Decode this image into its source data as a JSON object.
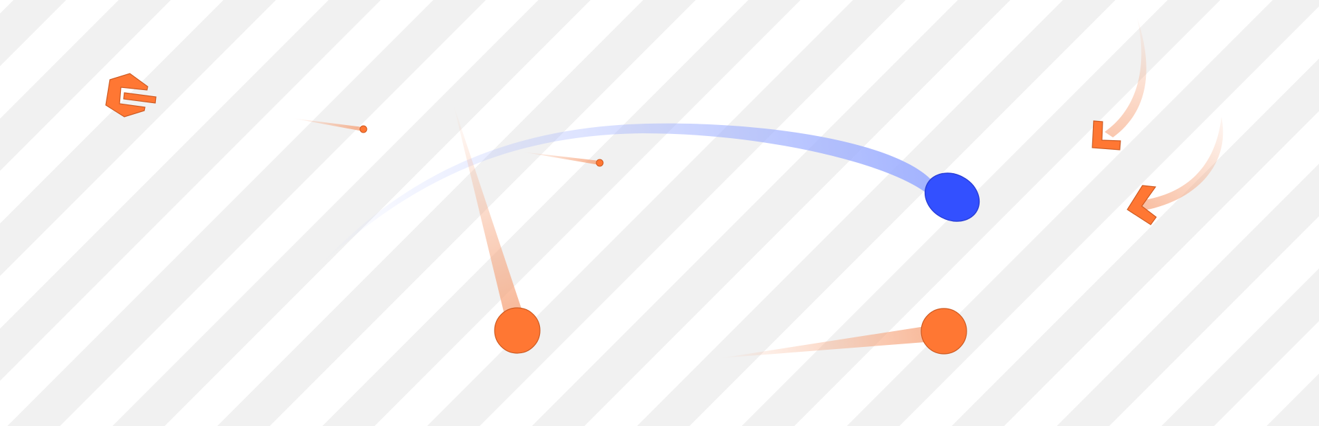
{
  "scene": {
    "background": {
      "stripe_light": "#ffffff",
      "stripe_dark": "#f1f1f1"
    },
    "colors": {
      "player": "#3350ff",
      "player_stroke": "#2a3fd6",
      "player_trail": "#9fb0ff",
      "enemy": "#ff7733",
      "enemy_stroke": "#cc5a22",
      "enemy_trail": "#f6a37a"
    },
    "entities": {
      "player": {
        "kind": "blue-ellipse",
        "icon": "player-blob-icon"
      },
      "enemies": [
        {
          "kind": "orange-circle",
          "icon": "enemy-ball-icon"
        },
        {
          "kind": "orange-circle",
          "icon": "enemy-ball-icon"
        }
      ],
      "projectiles": [
        {
          "kind": "small-orange-dot",
          "icon": "bullet-icon"
        },
        {
          "kind": "small-orange-dot",
          "icon": "bullet-icon"
        }
      ],
      "shards": [
        {
          "kind": "c-shaped-shard",
          "icon": "c-shard-icon"
        },
        {
          "kind": "l-shaped-shard",
          "icon": "l-shard-icon"
        },
        {
          "kind": "chevron-shard",
          "icon": "chevron-shard-icon"
        }
      ]
    }
  }
}
